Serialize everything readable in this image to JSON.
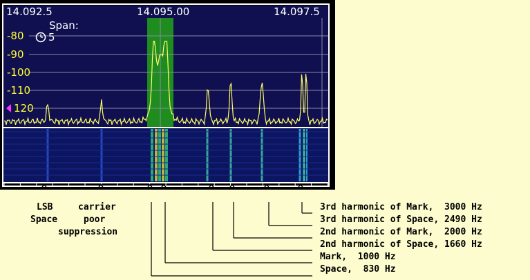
{
  "scope": {
    "freq_labels": [
      "14.092.5",
      "14.095.00",
      "14.097.5"
    ],
    "db_labels": [
      "-80",
      "-90",
      "-100",
      "-110",
      "120"
    ],
    "span_label": "Span:",
    "span_value": "5",
    "colors": {
      "background": "#101050",
      "trace": "#ffff66",
      "passband": "#1e8c1e",
      "db_text": "#ffff33",
      "marker": "#ff33ff"
    }
  },
  "annotations": {
    "left_labels": [
      {
        "text": "LSB"
      },
      {
        "text": "Space"
      },
      {
        "text": "carrier"
      },
      {
        "text": "poor"
      },
      {
        "text": "suppression"
      }
    ],
    "carets": [
      "^",
      "^",
      "^",
      "^",
      "^",
      "^",
      "^",
      "^"
    ],
    "harmonics": [
      {
        "text": "3rd harmonic of Mark,  3000 Hz"
      },
      {
        "text": "3rd harmonic of Space, 2490 Hz"
      },
      {
        "text": "2nd harmonic of Mark,  2000 Hz"
      },
      {
        "text": "2nd harmonic of Space, 1660 Hz"
      },
      {
        "text": "Mark,  1000 Hz"
      },
      {
        "text": "Space,  830 Hz"
      }
    ]
  }
}
